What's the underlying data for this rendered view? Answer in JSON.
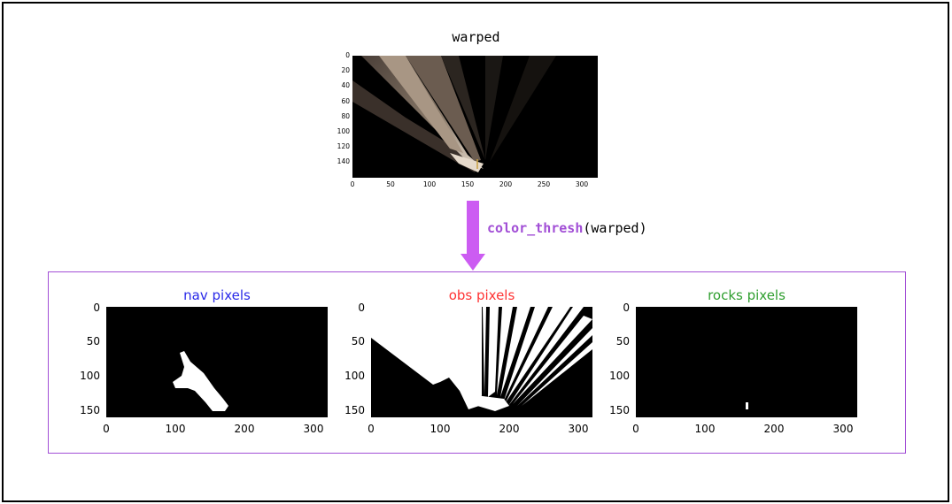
{
  "top": {
    "title": "warped",
    "yticks": [
      "0",
      "20",
      "40",
      "60",
      "80",
      "100",
      "120",
      "140"
    ],
    "xticks": [
      "0",
      "50",
      "100",
      "150",
      "200",
      "250",
      "300"
    ]
  },
  "arrow": {
    "function": "color_thresh",
    "argument": "(warped)",
    "color": "#cc5cf2"
  },
  "panels": [
    {
      "title": "nav pixels",
      "color": "#2a2ae8"
    },
    {
      "title": "obs pixels",
      "color": "#ff3333"
    },
    {
      "title": "rocks pixels",
      "color": "#2e9e2e"
    }
  ],
  "panel_axes": {
    "yticks": [
      "0",
      "50",
      "100",
      "150"
    ],
    "xticks": [
      "0",
      "100",
      "200",
      "300"
    ]
  },
  "colors": {
    "box_border": "#a24fd6",
    "image_bg": "#000000",
    "mask": "#ffffff"
  }
}
